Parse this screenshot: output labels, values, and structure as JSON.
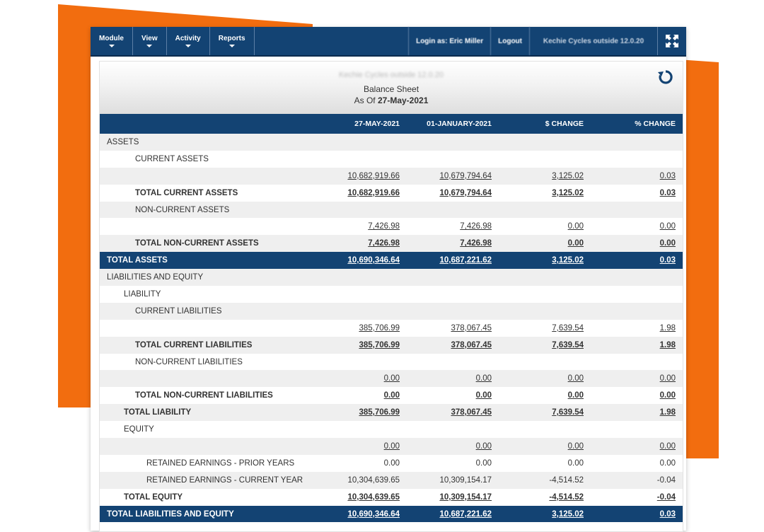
{
  "navbar": {
    "menus": [
      "Module",
      "View",
      "Activity",
      "Reports"
    ],
    "login_text": "Login as: Eric Miller",
    "logout_label": "Logout",
    "company_text": "Kechie Cycles outside 12.0.20"
  },
  "report": {
    "company": "Kechie Cycles outside 12.0.20",
    "title": "Balance Sheet",
    "as_of_prefix": "As Of",
    "as_of_date": "27-May-2021"
  },
  "columns": [
    "27-MAY-2021",
    "01-JANUARY-2021",
    "$ CHANGE",
    "% CHANGE"
  ],
  "rows": [
    {
      "label": "ASSETS",
      "indent": 0,
      "type": "heading",
      "values": []
    },
    {
      "label": "CURRENT ASSETS",
      "indent": 2,
      "type": "heading",
      "values": []
    },
    {
      "label": "",
      "indent": 0,
      "type": "detail",
      "values": [
        "10,682,919.66",
        "10,679,794.64",
        "3,125.02",
        "0.03"
      ]
    },
    {
      "label": "TOTAL CURRENT ASSETS",
      "indent": 2,
      "type": "total",
      "values": [
        "10,682,919.66",
        "10,679,794.64",
        "3,125.02",
        "0.03"
      ]
    },
    {
      "label": "NON-CURRENT ASSETS",
      "indent": 2,
      "type": "heading",
      "values": []
    },
    {
      "label": "",
      "indent": 0,
      "type": "detail",
      "values": [
        "7,426.98",
        "7,426.98",
        "0.00",
        "0.00"
      ]
    },
    {
      "label": "TOTAL NON-CURRENT ASSETS",
      "indent": 2,
      "type": "total",
      "values": [
        "7,426.98",
        "7,426.98",
        "0.00",
        "0.00"
      ]
    },
    {
      "label": "TOTAL ASSETS",
      "indent": 0,
      "type": "grand",
      "values": [
        "10,690,346.64",
        "10,687,221.62",
        "3,125.02",
        "0.03"
      ]
    },
    {
      "label": "LIABILITIES AND EQUITY",
      "indent": 0,
      "type": "heading",
      "values": []
    },
    {
      "label": "LIABILITY",
      "indent": 1,
      "type": "heading",
      "values": []
    },
    {
      "label": "CURRENT LIABILITIES",
      "indent": 2,
      "type": "heading",
      "values": []
    },
    {
      "label": "",
      "indent": 0,
      "type": "detail",
      "values": [
        "385,706.99",
        "378,067.45",
        "7,639.54",
        "1.98"
      ]
    },
    {
      "label": "TOTAL CURRENT LIABILITIES",
      "indent": 2,
      "type": "total",
      "values": [
        "385,706.99",
        "378,067.45",
        "7,639.54",
        "1.98"
      ]
    },
    {
      "label": "NON-CURRENT LIABILITIES",
      "indent": 2,
      "type": "heading",
      "values": []
    },
    {
      "label": "",
      "indent": 0,
      "type": "detail",
      "values": [
        "0.00",
        "0.00",
        "0.00",
        "0.00"
      ]
    },
    {
      "label": "TOTAL NON-CURRENT LIABILITIES",
      "indent": 2,
      "type": "total",
      "values": [
        "0.00",
        "0.00",
        "0.00",
        "0.00"
      ]
    },
    {
      "label": "TOTAL LIABILITY",
      "indent": 1,
      "type": "total",
      "values": [
        "385,706.99",
        "378,067.45",
        "7,639.54",
        "1.98"
      ]
    },
    {
      "label": "EQUITY",
      "indent": 1,
      "type": "heading",
      "values": []
    },
    {
      "label": "",
      "indent": 0,
      "type": "detail",
      "values": [
        "0.00",
        "0.00",
        "0.00",
        "0.00"
      ]
    },
    {
      "label": "RETAINED EARNINGS - PRIOR YEARS",
      "indent": 3,
      "type": "plain",
      "values": [
        "0.00",
        "0.00",
        "0.00",
        "0.00"
      ]
    },
    {
      "label": "RETAINED EARNINGS - CURRENT YEAR",
      "indent": 3,
      "type": "plain",
      "values": [
        "10,304,639.65",
        "10,309,154.17",
        "-4,514.52",
        "-0.04"
      ]
    },
    {
      "label": "TOTAL EQUITY",
      "indent": 1,
      "type": "total",
      "values": [
        "10,304,639.65",
        "10,309,154.17",
        "-4,514.52",
        "-0.04"
      ]
    },
    {
      "label": "TOTAL LIABILITIES AND EQUITY",
      "indent": 0,
      "type": "grand",
      "values": [
        "10,690,346.64",
        "10,687,221.62",
        "3,125.02",
        "0.03"
      ]
    }
  ],
  "colors": {
    "navy": "#134373",
    "accent": "#f26d0f",
    "row_shade": "#efefef"
  },
  "icons": {
    "expand": "expand-icon",
    "refresh": "refresh-icon"
  }
}
